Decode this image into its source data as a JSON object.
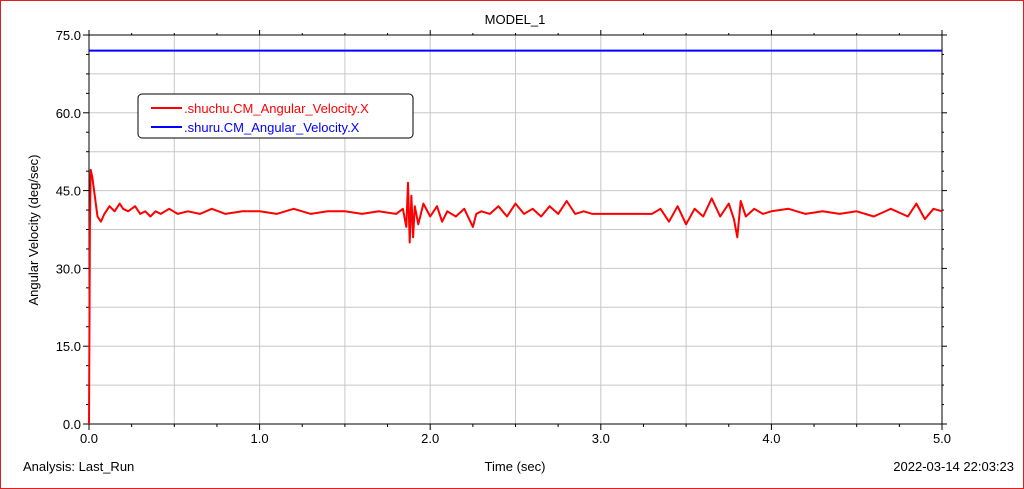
{
  "header": {
    "title": "MODEL_1"
  },
  "footer": {
    "analysis_label": "Analysis:  Last_Run",
    "timestamp": "2022-03-14 22:03:23"
  },
  "colors": {
    "frame_border": "#e02020",
    "grid": "#c8c8c8",
    "series_1": "#ff0000",
    "series_2": "#0000ff"
  },
  "chart_data": {
    "type": "line",
    "title": "MODEL_1",
    "xlabel": "Time (sec)",
    "ylabel": "Angular Velocity (deg/sec)",
    "xlim": [
      0.0,
      5.0
    ],
    "ylim": [
      0.0,
      75.0
    ],
    "x_ticks": [
      0.0,
      1.0,
      2.0,
      3.0,
      4.0,
      5.0
    ],
    "x_tick_labels": [
      "0.0",
      "1.0",
      "2.0",
      "3.0",
      "4.0",
      "5.0"
    ],
    "y_ticks": [
      0.0,
      15.0,
      30.0,
      45.0,
      60.0,
      75.0
    ],
    "y_tick_labels": [
      "0.0",
      "15.0",
      "30.0",
      "45.0",
      "60.0",
      "75.0"
    ],
    "grid": true,
    "legend_position": "top-left",
    "series": [
      {
        "name": ".shuchu.CM_Angular_Velocity.X",
        "color": "#ff0000",
        "x": [
          0.0,
          0.005,
          0.01,
          0.02,
          0.03,
          0.04,
          0.05,
          0.07,
          0.09,
          0.12,
          0.15,
          0.18,
          0.2,
          0.23,
          0.27,
          0.3,
          0.33,
          0.36,
          0.39,
          0.42,
          0.47,
          0.52,
          0.58,
          0.65,
          0.72,
          0.8,
          0.9,
          1.0,
          1.1,
          1.2,
          1.3,
          1.4,
          1.5,
          1.6,
          1.7,
          1.8,
          1.84,
          1.86,
          1.87,
          1.88,
          1.89,
          1.9,
          1.91,
          1.93,
          1.96,
          2.0,
          2.04,
          2.07,
          2.1,
          2.15,
          2.2,
          2.25,
          2.27,
          2.3,
          2.35,
          2.4,
          2.45,
          2.5,
          2.55,
          2.6,
          2.65,
          2.7,
          2.75,
          2.8,
          2.85,
          2.9,
          2.95,
          3.0,
          3.1,
          3.2,
          3.3,
          3.35,
          3.4,
          3.45,
          3.5,
          3.55,
          3.6,
          3.65,
          3.7,
          3.75,
          3.78,
          3.8,
          3.82,
          3.85,
          3.9,
          3.95,
          4.0,
          4.1,
          4.2,
          4.3,
          4.4,
          4.5,
          4.6,
          4.7,
          4.8,
          4.85,
          4.9,
          4.95,
          5.0
        ],
        "values": [
          0.0,
          38.0,
          49.0,
          47.5,
          45.0,
          42.5,
          40.0,
          39.0,
          40.5,
          42.0,
          41.0,
          42.5,
          41.5,
          41.0,
          42.0,
          40.5,
          41.0,
          40.0,
          41.0,
          40.5,
          41.5,
          40.5,
          41.0,
          40.5,
          41.5,
          40.5,
          41.0,
          41.0,
          40.5,
          41.5,
          40.5,
          41.0,
          41.0,
          40.5,
          41.0,
          40.5,
          41.5,
          38.0,
          46.5,
          35.0,
          44.0,
          36.0,
          42.0,
          38.5,
          42.5,
          40.0,
          42.0,
          39.0,
          41.0,
          40.0,
          41.5,
          38.0,
          40.5,
          41.0,
          40.5,
          42.0,
          40.0,
          42.5,
          40.5,
          41.5,
          40.0,
          42.0,
          40.5,
          43.0,
          40.5,
          41.0,
          40.5,
          40.5,
          40.5,
          40.5,
          40.5,
          41.5,
          39.0,
          42.0,
          38.5,
          41.5,
          40.0,
          43.5,
          40.0,
          42.5,
          39.5,
          36.0,
          43.0,
          40.0,
          41.5,
          40.5,
          41.0,
          41.5,
          40.5,
          41.0,
          40.5,
          41.0,
          40.0,
          41.5,
          40.0,
          42.5,
          39.5,
          41.5,
          41.0
        ]
      },
      {
        "name": ".shuru.CM_Angular_Velocity.X",
        "color": "#0000ff",
        "x": [
          0.0,
          5.0
        ],
        "values": [
          72.0,
          72.0
        ]
      }
    ]
  }
}
